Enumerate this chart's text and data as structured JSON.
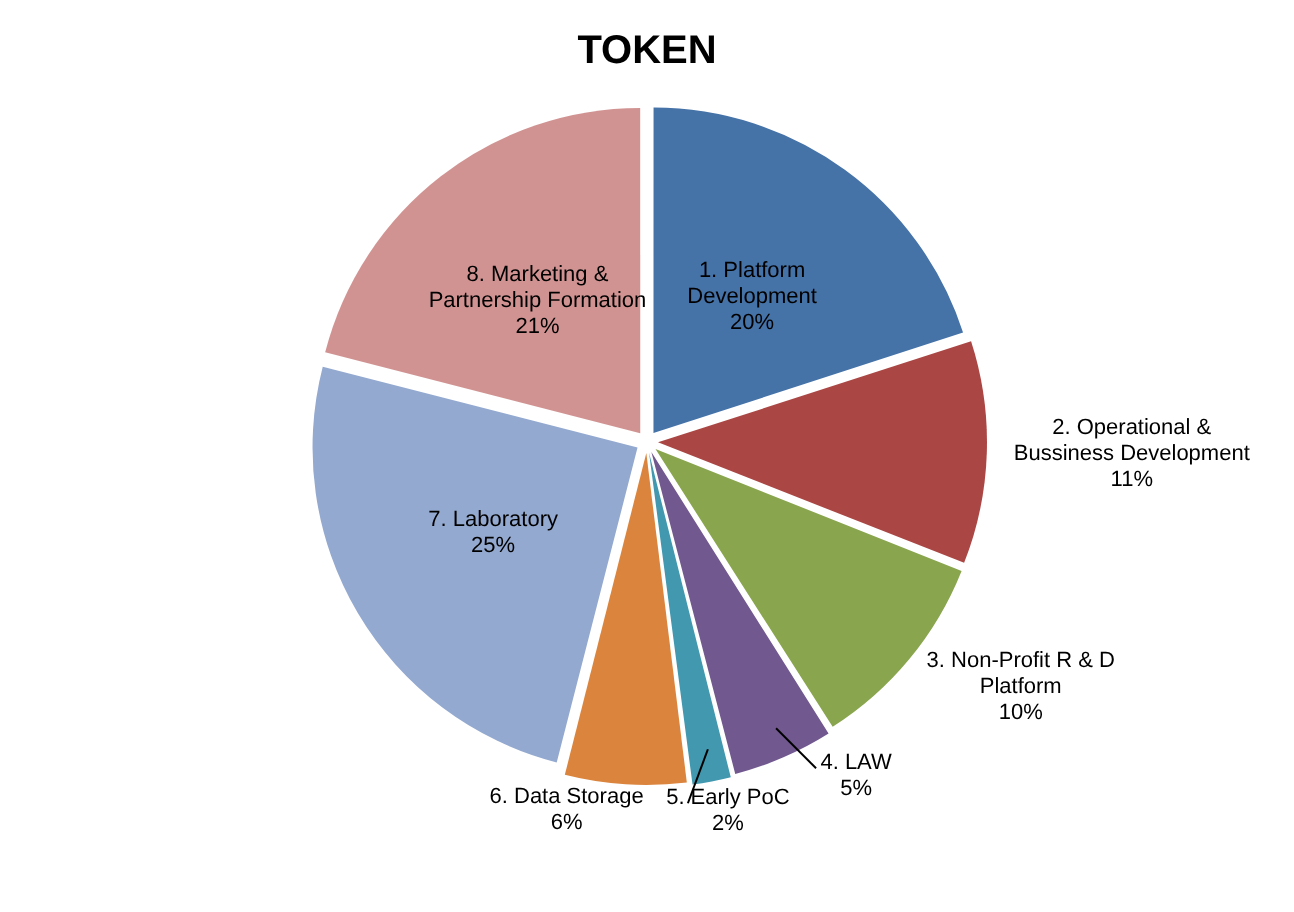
{
  "chart_data": {
    "type": "pie",
    "title": "TOKEN",
    "categories": [
      "1. Platform Development",
      "2. Operational & Bussiness Development",
      "3. Non-Profit R & D Platform",
      "4. LAW",
      "5. Early PoC",
      "6. Data Storage",
      "7. Laboratory",
      "8. Marketing & Partnership Formation"
    ],
    "values": [
      20,
      11,
      10,
      5,
      2,
      6,
      25,
      21
    ],
    "value_labels": [
      "20%",
      "11%",
      "10%",
      "5%",
      "2%",
      "6%",
      "25%",
      "21%"
    ],
    "colors": [
      "#4572a7",
      "#aa4643",
      "#89a54e",
      "#71588f",
      "#4198af",
      "#db843d",
      "#93a9cf",
      "#d19392"
    ],
    "legend": false
  }
}
